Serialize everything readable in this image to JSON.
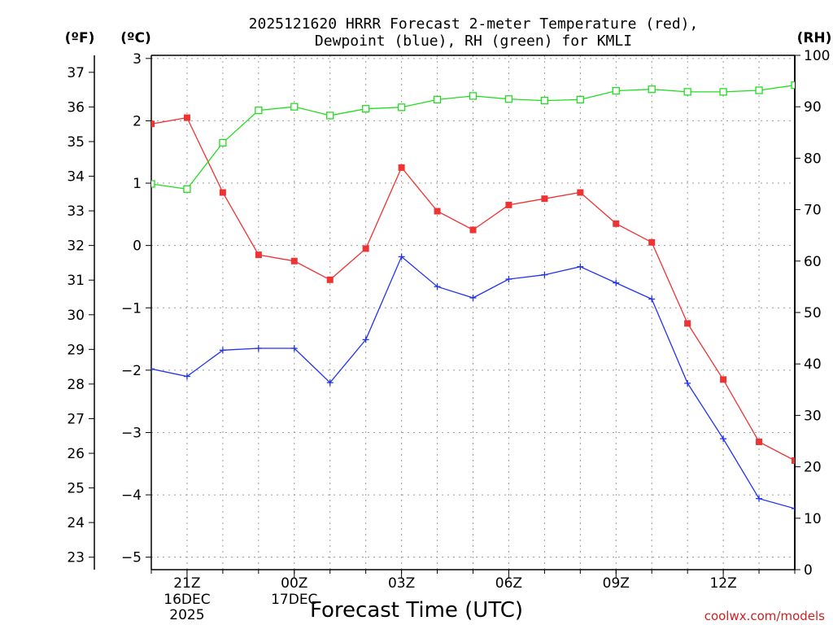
{
  "chart_data": {
    "type": "line",
    "title_line1": "2025121620 HRRR Forecast 2-meter Temperature (red),",
    "title_line2": "Dewpoint (blue), RH (green) for KMLI",
    "left_outer_label": "(ºF)",
    "left_inner_label": "(ºC)",
    "right_label": "(RH)",
    "xlabel": "Forecast Time (UTC)",
    "credit": "coolwx.com/models",
    "x": [
      0,
      1,
      2,
      3,
      4,
      5,
      6,
      7,
      8,
      9,
      10,
      11,
      12,
      13,
      14,
      15,
      16,
      17,
      18
    ],
    "x_ticks": [
      {
        "x": 1,
        "l1": "21Z",
        "l2": "16DEC",
        "l3": "2025"
      },
      {
        "x": 4,
        "l1": "00Z",
        "l2": "17DEC",
        "l3": ""
      },
      {
        "x": 7,
        "l1": "03Z",
        "l2": "",
        "l3": ""
      },
      {
        "x": 10,
        "l1": "06Z",
        "l2": "",
        "l3": ""
      },
      {
        "x": 13,
        "l1": "09Z",
        "l2": "",
        "l3": ""
      },
      {
        "x": 16,
        "l1": "12Z",
        "l2": "",
        "l3": ""
      }
    ],
    "xlim": [
      0,
      18
    ],
    "celsius_axis": {
      "ylim": [
        -5.2,
        3.05
      ],
      "ticks": [
        "3",
        "2",
        "1",
        "0",
        "−1",
        "−2",
        "−3",
        "−4",
        "−5"
      ],
      "tick_values": [
        3,
        2,
        1,
        0,
        -1,
        -2,
        -3,
        -4,
        -5
      ]
    },
    "fahrenheit_axis": {
      "ticks": [
        "37",
        "36",
        "35",
        "34",
        "33",
        "32",
        "31",
        "30",
        "29",
        "28",
        "27",
        "26",
        "25",
        "24",
        "23"
      ],
      "tick_values": [
        37,
        36,
        35,
        34,
        33,
        32,
        31,
        30,
        29,
        28,
        27,
        26,
        25,
        24,
        23
      ]
    },
    "rh_axis": {
      "ylim": [
        0,
        100
      ],
      "ticks": [
        "100",
        "90",
        "80",
        "70",
        "60",
        "50",
        "40",
        "30",
        "20",
        "10",
        "0"
      ],
      "tick_values": [
        100,
        90,
        80,
        70,
        60,
        50,
        40,
        30,
        20,
        10,
        0
      ]
    },
    "series": [
      {
        "name": "Temperature",
        "axis": "celsius",
        "color": "#ee3333",
        "marker": "filled-square",
        "values": [
          1.95,
          2.05,
          0.85,
          -0.15,
          -0.25,
          -0.55,
          -0.05,
          1.25,
          0.55,
          0.25,
          0.65,
          0.75,
          0.85,
          0.35,
          0.05,
          -1.25,
          -2.15,
          -3.15,
          -3.45
        ]
      },
      {
        "name": "Dewpoint",
        "axis": "celsius",
        "color": "#2233ee",
        "marker": "plus",
        "values": [
          -1.98,
          -2.1,
          -1.68,
          -1.65,
          -1.65,
          -2.2,
          -1.51,
          -0.18,
          -0.66,
          -0.84,
          -0.54,
          -0.47,
          -0.34,
          -0.6,
          -0.86,
          -2.21,
          -3.1,
          -4.06,
          -4.22
        ]
      },
      {
        "name": "RH",
        "axis": "rh",
        "color": "#22dd22",
        "marker": "open-square",
        "values": [
          75,
          74,
          83,
          89.3,
          90,
          88.3,
          89.6,
          89.9,
          91.4,
          92.1,
          91.5,
          91.2,
          91.4,
          93.1,
          93.4,
          92.9,
          92.9,
          93.2,
          94.2
        ]
      }
    ]
  }
}
